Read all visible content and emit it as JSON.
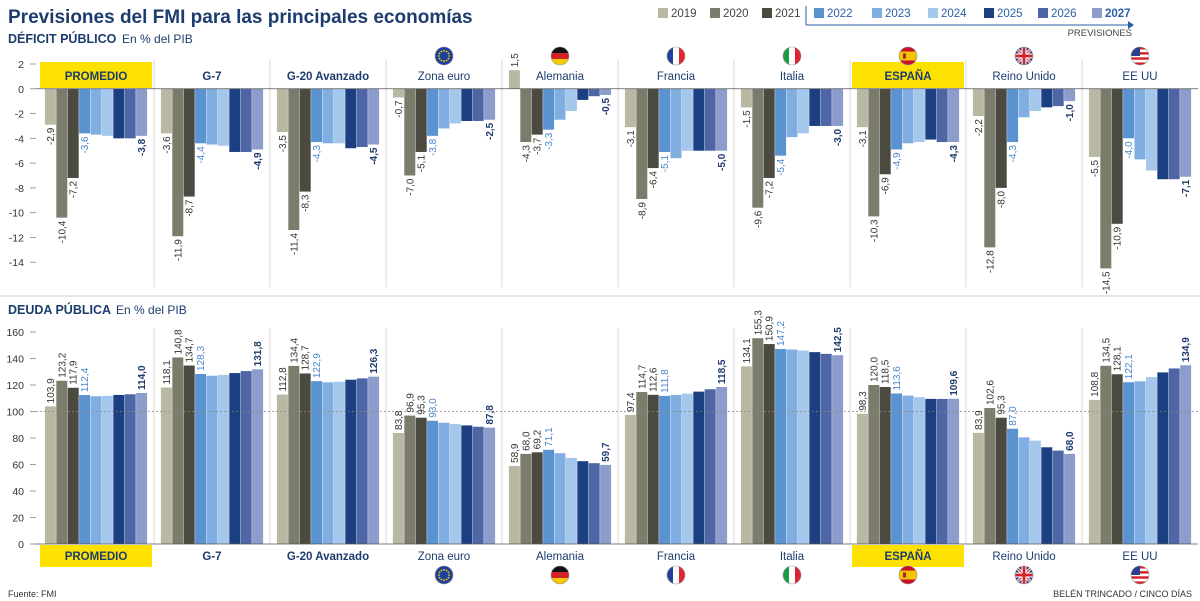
{
  "title": "Previsiones del FMI para las principales economías",
  "legend": {
    "years": [
      "2019",
      "2020",
      "2021",
      "2022",
      "2023",
      "2024",
      "2025",
      "2026",
      "2027"
    ],
    "colors": [
      "#b9b8a2",
      "#7c7c6c",
      "#4a4a40",
      "#5b92d0",
      "#80aee0",
      "#a6c7ec",
      "#1b3f80",
      "#4e65a6",
      "#8c9dcb"
    ],
    "previsiones_label": "PREVISIONES"
  },
  "source": "Fuente: FMI",
  "credit": "BELÉN TRINCADO / CINCO DÍAS",
  "highlight_color": "#fde100",
  "chart_data": [
    {
      "type": "bar",
      "title": "DÉFICIT PÚBLICO",
      "subtitle": "En % del PIB",
      "ylim": [
        -16,
        2
      ],
      "yticks": [
        2,
        0,
        -2,
        -4,
        -6,
        -8,
        -10,
        -12,
        -14
      ],
      "categories": [
        "PROMEDIO",
        "G-7",
        "G-20 Avanzado",
        "Zona euro",
        "Alemania",
        "Francia",
        "Italia",
        "ESPAÑA",
        "Reino Unido",
        "EE UU"
      ],
      "series": [
        {
          "name": "2019",
          "values": [
            -2.9,
            -3.6,
            -3.5,
            -0.7,
            1.5,
            -3.1,
            -1.5,
            -3.1,
            -2.2,
            -5.5
          ]
        },
        {
          "name": "2020",
          "values": [
            -10.4,
            -11.9,
            -11.4,
            -7.0,
            -4.3,
            -8.9,
            -9.6,
            -10.3,
            -12.8,
            -14.5
          ]
        },
        {
          "name": "2021",
          "values": [
            -7.2,
            -8.7,
            -8.3,
            -5.1,
            -3.7,
            -6.4,
            -7.2,
            -6.9,
            -8.0,
            -10.9
          ]
        },
        {
          "name": "2022",
          "values": [
            -3.6,
            -4.4,
            -4.3,
            -3.8,
            -3.3,
            -5.1,
            -5.4,
            -4.9,
            -4.3,
            -4.0
          ]
        },
        {
          "name": "2023",
          "values": [
            -3.7,
            -4.5,
            -4.4,
            -3.2,
            -2.5,
            -5.6,
            -3.9,
            -4.4,
            -2.3,
            -5.7
          ]
        },
        {
          "name": "2024",
          "values": [
            -3.8,
            -4.6,
            -4.4,
            -2.8,
            -1.8,
            -5.0,
            -3.6,
            -4.3,
            -1.8,
            -6.6
          ]
        },
        {
          "name": "2025",
          "values": [
            -4.0,
            -5.1,
            -4.8,
            -2.6,
            -0.9,
            -5.0,
            -3.0,
            -4.1,
            -1.5,
            -7.3
          ]
        },
        {
          "name": "2026",
          "values": [
            -4.0,
            -5.1,
            -4.7,
            -2.6,
            -0.6,
            -5.0,
            -3.0,
            -4.3,
            -1.4,
            -7.3
          ]
        },
        {
          "name": "2027",
          "values": [
            -3.8,
            -4.9,
            -4.5,
            -2.5,
            -0.5,
            -5.0,
            -3.0,
            -4.3,
            -1.0,
            -7.1
          ]
        }
      ],
      "labels": {
        "2019": [
          "-2,9",
          "-3,6",
          "-3,5",
          "-0,7",
          "1,5",
          "-3,1",
          "-1,5",
          "-3,1",
          "-2,2",
          "-5,5"
        ],
        "2020": [
          "-10,4",
          "-11,9",
          "-11,4",
          "-7,0",
          "-4,3",
          "-8,9",
          "-9,6",
          "-10,3",
          "-12,8",
          "-14,5"
        ],
        "2021": [
          "-7,2",
          "-8,7",
          "-8,3",
          "-5,1",
          "-3,7",
          "-6,4",
          "-7,2",
          "-6,9",
          "-8,0",
          "-10,9"
        ],
        "2022": [
          "-3,6",
          "-4,4",
          "-4,3",
          "-3,8",
          "-3,3",
          "-5,1",
          "-5,4",
          "-4,9",
          "-4,3",
          "-4,0"
        ],
        "2027": [
          "-3,8",
          "-4,9",
          "-4,5",
          "-2,5",
          "-0,5",
          "-5,0",
          "-3,0",
          "-4,3",
          "-1,0",
          "-7,1"
        ]
      }
    },
    {
      "type": "bar",
      "title": "DEUDA PÚBLICA",
      "subtitle": "En % del PIB",
      "ylim": [
        0,
        160
      ],
      "yticks": [
        160,
        140,
        120,
        100,
        80,
        60,
        40,
        20,
        0
      ],
      "reference_line": 100,
      "categories": [
        "PROMEDIO",
        "G-7",
        "G-20 Avanzado",
        "Zona euro",
        "Alemania",
        "Francia",
        "Italia",
        "ESPAÑA",
        "Reino Unido",
        "EE UU"
      ],
      "series": [
        {
          "name": "2019",
          "values": [
            103.9,
            118.1,
            112.8,
            83.8,
            58.9,
            97.4,
            134.1,
            98.3,
            83.9,
            108.8
          ]
        },
        {
          "name": "2020",
          "values": [
            123.2,
            140.8,
            134.4,
            96.9,
            68.0,
            114.7,
            155.3,
            120.0,
            102.6,
            134.5
          ]
        },
        {
          "name": "2021",
          "values": [
            117.9,
            134.7,
            128.7,
            95.3,
            69.2,
            112.6,
            150.9,
            118.5,
            95.3,
            128.1
          ]
        },
        {
          "name": "2022",
          "values": [
            112.4,
            128.3,
            122.9,
            93.0,
            71.1,
            111.8,
            147.2,
            113.6,
            87.0,
            122.1
          ]
        },
        {
          "name": "2023",
          "values": [
            111.5,
            127.0,
            122.0,
            91.5,
            68.5,
            112.5,
            146.8,
            112.0,
            80.5,
            122.8
          ]
        },
        {
          "name": "2024",
          "values": [
            111.8,
            127.6,
            122.5,
            90.5,
            65.0,
            113.5,
            146.0,
            110.8,
            78.0,
            126.0
          ]
        },
        {
          "name": "2025",
          "values": [
            112.5,
            129.0,
            124.0,
            89.5,
            62.5,
            115.0,
            144.8,
            109.5,
            73.0,
            129.5
          ]
        },
        {
          "name": "2026",
          "values": [
            113.0,
            130.5,
            125.0,
            88.5,
            61.0,
            116.8,
            143.5,
            109.5,
            70.5,
            132.5
          ]
        },
        {
          "name": "2027",
          "values": [
            114.0,
            131.8,
            126.3,
            87.8,
            59.7,
            118.5,
            142.5,
            109.6,
            68.0,
            134.9
          ]
        }
      ],
      "labels": {
        "2019": [
          "103,9",
          "118,1",
          "112,8",
          "83,8",
          "58,9",
          "97,4",
          "134,1",
          "98,3",
          "83,9",
          "108,8"
        ],
        "2020": [
          "123,2",
          "140,8",
          "134,4",
          "96,9",
          "68,0",
          "114,7",
          "155,3",
          "120,0",
          "102,6",
          "134,5"
        ],
        "2021": [
          "117,9",
          "134,7",
          "128,7",
          "95,3",
          "69,2",
          "112,6",
          "150,9",
          "118,5",
          "95,3",
          "128,1"
        ],
        "2022": [
          "112,4",
          "128,3",
          "122,9",
          "93,0",
          "71,1",
          "111,8",
          "147,2",
          "113,6",
          "87,0",
          "122,1"
        ],
        "2027": [
          "114,0",
          "131,8",
          "126,3",
          "87,8",
          "59,7",
          "118,5",
          "142,5",
          "109,6",
          "68,0",
          "134,9"
        ]
      }
    }
  ],
  "groups": [
    {
      "name": "PROMEDIO",
      "highlight": true,
      "flag": ""
    },
    {
      "name": "G-7",
      "highlight": false,
      "flag": ""
    },
    {
      "name": "G-20 Avanzado",
      "highlight": false,
      "flag": ""
    },
    {
      "name": "Zona euro",
      "highlight": false,
      "flag": "eu"
    },
    {
      "name": "Alemania",
      "highlight": false,
      "flag": "de"
    },
    {
      "name": "Francia",
      "highlight": false,
      "flag": "fr"
    },
    {
      "name": "Italia",
      "highlight": false,
      "flag": "it"
    },
    {
      "name": "ESPAÑA",
      "highlight": true,
      "flag": "es"
    },
    {
      "name": "Reino Unido",
      "highlight": false,
      "flag": "uk"
    },
    {
      "name": "EE UU",
      "highlight": false,
      "flag": "us"
    }
  ]
}
